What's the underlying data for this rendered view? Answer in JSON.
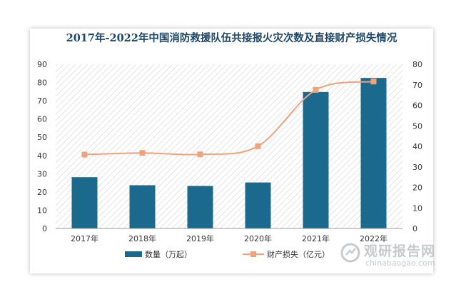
{
  "chart_data": {
    "type": "bar",
    "title": "2017年-2022年中国消防救援队伍共接报火灾次数及直接财产损失情况",
    "categories": [
      "2017年",
      "2018年",
      "2019年",
      "2020年",
      "2021年",
      "2022年"
    ],
    "series": [
      {
        "name": "数量（万起）",
        "type": "bar",
        "axis": "left",
        "values": [
          28.1,
          23.7,
          23.3,
          25.2,
          74.8,
          82.5
        ],
        "color": "#1b6a8e"
      },
      {
        "name": "财产损失（亿元）",
        "type": "line",
        "axis": "right",
        "values": [
          36.0,
          36.8,
          36.1,
          40.1,
          67.5,
          71.6
        ],
        "color": "#f0a27c"
      }
    ],
    "y_left": {
      "min": 0,
      "max": 90,
      "ticks": [
        0,
        10,
        20,
        30,
        40,
        50,
        60,
        70,
        80,
        90
      ]
    },
    "y_right": {
      "min": 0,
      "max": 80,
      "ticks": [
        0,
        10,
        20,
        30,
        40,
        50,
        60,
        70,
        80
      ]
    },
    "plot_background": "diagonal-hatch",
    "legend": "bottom"
  },
  "watermark": {
    "cn": "观研报告网",
    "en": "chinabaogao.com"
  }
}
